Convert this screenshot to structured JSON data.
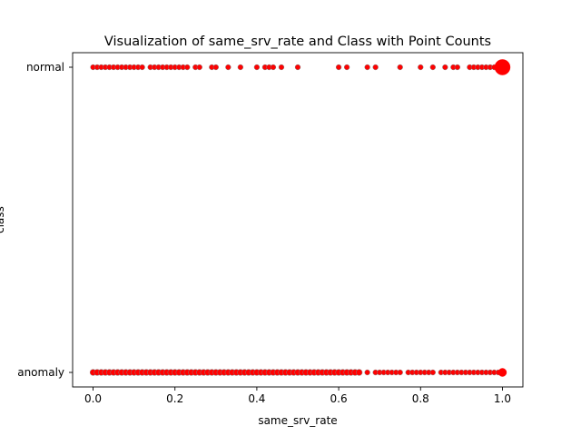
{
  "chart_data": {
    "type": "scatter",
    "title": "Visualization of same_srv_rate and Class with Point Counts",
    "xlabel": "same_srv_rate",
    "ylabel": "class",
    "xlim": [
      -0.05,
      1.05
    ],
    "xticks": [
      "0.0",
      "0.2",
      "0.4",
      "0.6",
      "0.8",
      "1.0"
    ],
    "categories": [
      "anomaly",
      "normal"
    ],
    "marker_color": "#ff0000",
    "marker_edge_color": "#808080",
    "grid": false,
    "series": [
      {
        "category": "normal",
        "x": [
          0.0,
          0.01,
          0.02,
          0.03,
          0.04,
          0.05,
          0.06,
          0.07,
          0.08,
          0.09,
          0.1,
          0.11,
          0.12,
          0.14,
          0.15,
          0.16,
          0.17,
          0.18,
          0.19,
          0.2,
          0.21,
          0.22,
          0.23,
          0.25,
          0.26,
          0.29,
          0.3,
          0.33,
          0.36,
          0.4,
          0.42,
          0.43,
          0.44,
          0.46,
          0.5,
          0.6,
          0.62,
          0.67,
          0.69,
          0.75,
          0.8,
          0.83,
          0.86,
          0.88,
          0.89,
          0.92,
          0.93,
          0.94,
          0.95,
          0.96,
          0.97,
          0.98,
          0.99,
          1.0
        ],
        "counts": [
          1,
          1,
          1,
          1,
          1,
          1,
          1,
          1,
          1,
          1,
          1,
          1,
          1,
          1,
          1,
          1,
          1,
          1,
          1,
          1,
          1,
          1,
          1,
          1,
          1,
          1,
          1,
          1,
          1,
          1,
          1,
          1,
          1,
          1,
          1,
          1,
          1,
          1,
          1,
          1,
          1,
          1,
          1,
          1,
          1,
          1,
          1,
          1,
          1,
          1,
          1,
          1,
          1,
          60
        ]
      },
      {
        "category": "anomaly",
        "x": [
          0.0,
          0.01,
          0.02,
          0.03,
          0.04,
          0.05,
          0.06,
          0.07,
          0.08,
          0.09,
          0.1,
          0.11,
          0.12,
          0.13,
          0.14,
          0.15,
          0.16,
          0.17,
          0.18,
          0.19,
          0.2,
          0.21,
          0.22,
          0.23,
          0.24,
          0.25,
          0.26,
          0.27,
          0.28,
          0.29,
          0.3,
          0.31,
          0.32,
          0.33,
          0.34,
          0.35,
          0.36,
          0.37,
          0.38,
          0.39,
          0.4,
          0.41,
          0.42,
          0.43,
          0.44,
          0.45,
          0.46,
          0.47,
          0.48,
          0.49,
          0.5,
          0.51,
          0.52,
          0.53,
          0.54,
          0.55,
          0.56,
          0.57,
          0.58,
          0.59,
          0.6,
          0.61,
          0.62,
          0.63,
          0.64,
          0.65,
          0.67,
          0.69,
          0.7,
          0.71,
          0.72,
          0.73,
          0.74,
          0.75,
          0.77,
          0.78,
          0.79,
          0.8,
          0.81,
          0.82,
          0.83,
          0.85,
          0.86,
          0.87,
          0.88,
          0.89,
          0.9,
          0.91,
          0.92,
          0.93,
          0.94,
          0.95,
          0.96,
          0.97,
          0.98,
          0.99,
          1.0
        ],
        "counts": [
          2,
          2,
          2,
          2,
          2,
          2,
          2,
          2,
          2,
          2,
          2,
          2,
          2,
          2,
          2,
          2,
          2,
          2,
          2,
          2,
          2,
          2,
          2,
          2,
          2,
          2,
          2,
          2,
          2,
          2,
          2,
          2,
          2,
          2,
          2,
          2,
          2,
          2,
          2,
          2,
          2,
          2,
          2,
          2,
          2,
          2,
          2,
          2,
          2,
          2,
          2,
          2,
          2,
          2,
          2,
          2,
          2,
          2,
          2,
          2,
          2,
          2,
          2,
          2,
          2,
          2,
          1,
          1,
          1,
          1,
          1,
          1,
          1,
          1,
          1,
          1,
          1,
          1,
          1,
          1,
          1,
          1,
          1,
          1,
          1,
          1,
          1,
          1,
          1,
          1,
          1,
          1,
          1,
          1,
          1,
          1,
          8
        ]
      }
    ]
  }
}
